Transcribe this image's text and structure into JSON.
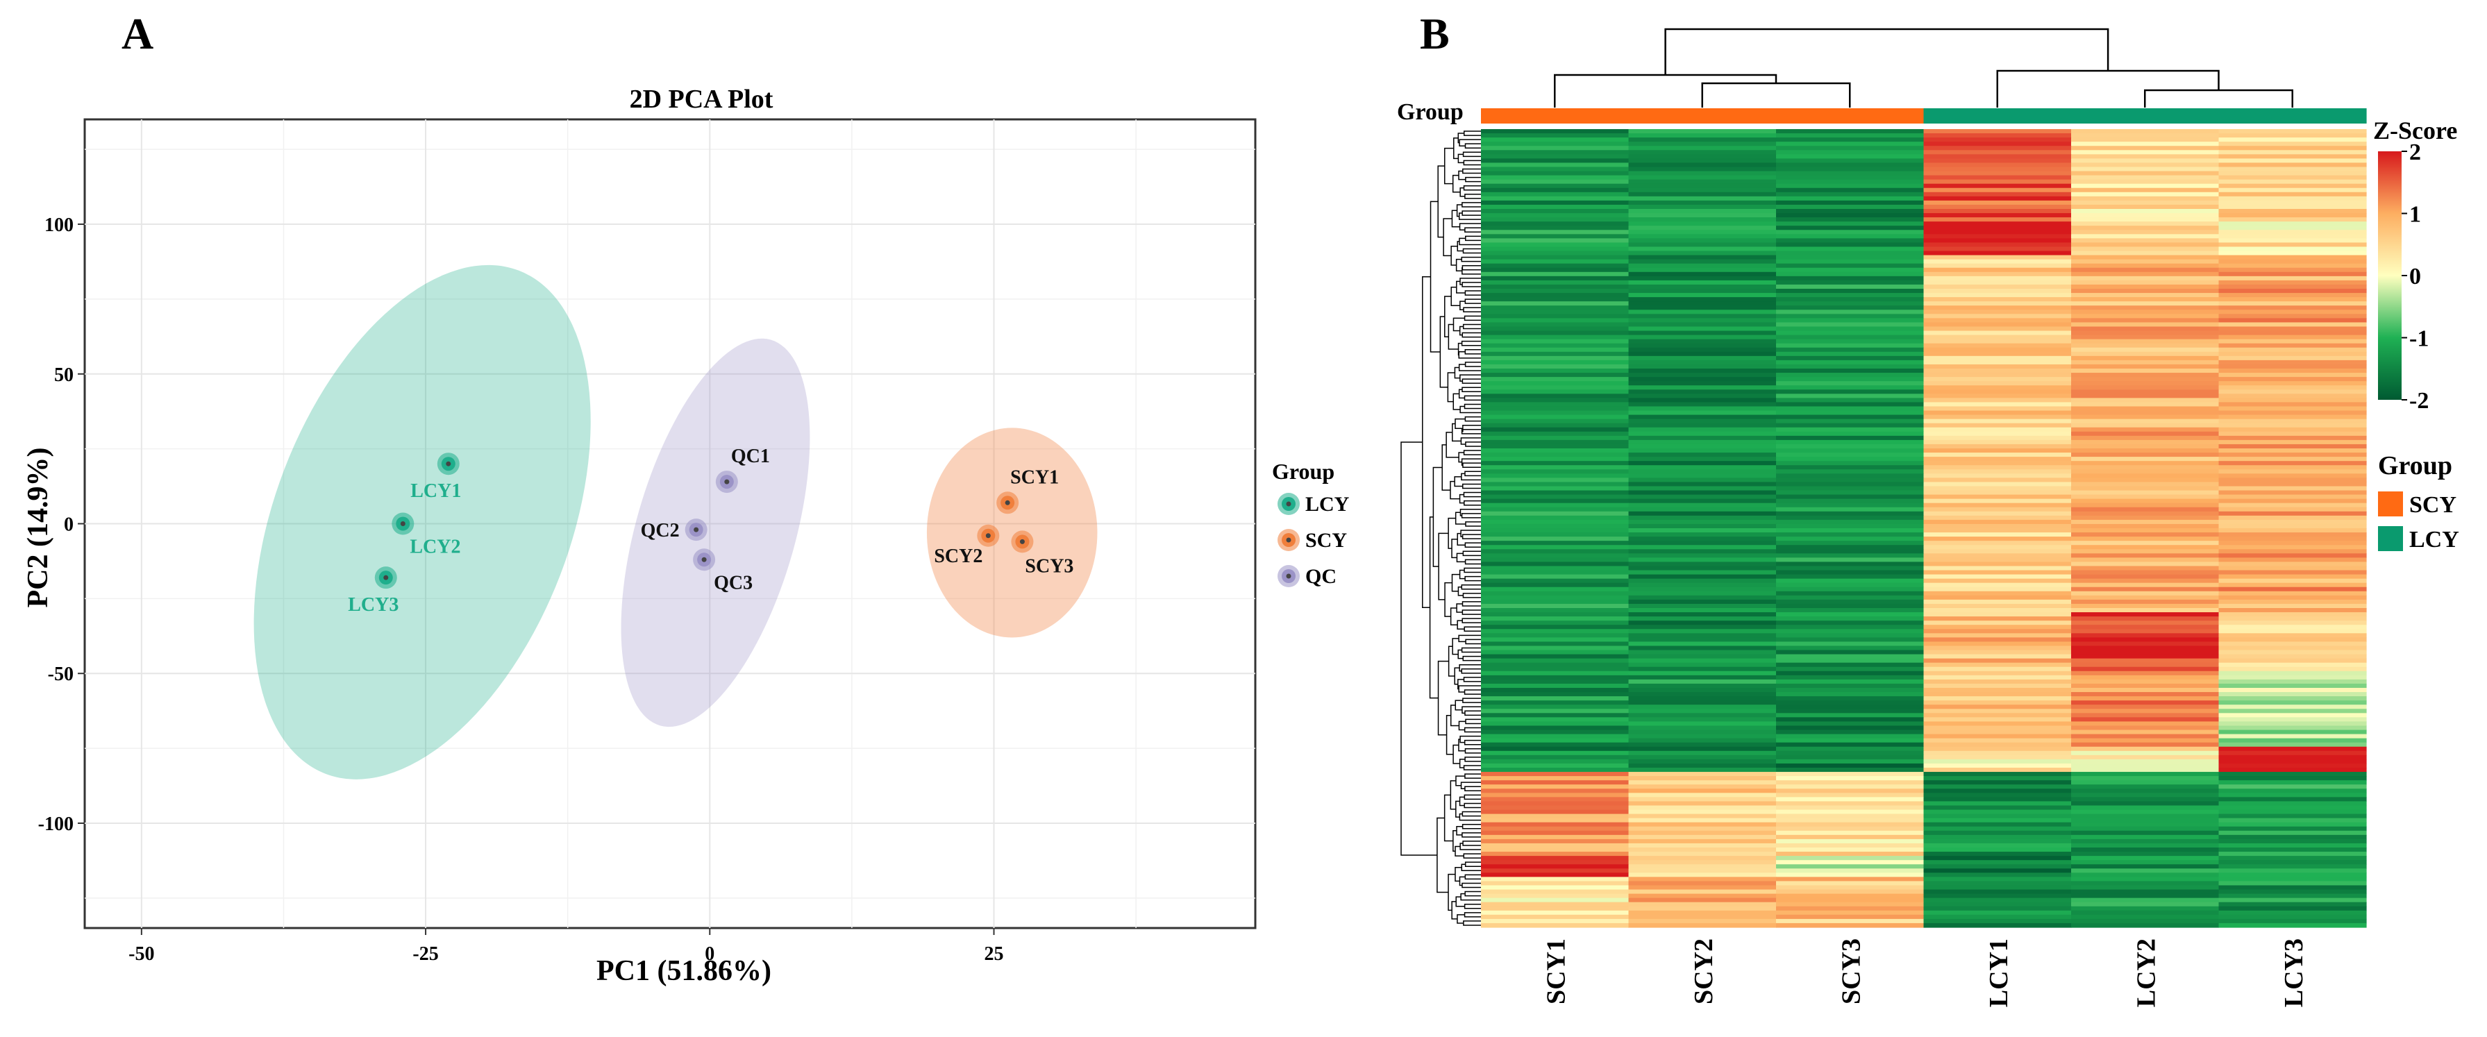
{
  "colors": {
    "LCY": "#1fae8c",
    "SCY": "#f07f3c",
    "QC": "#9b93c7",
    "bar_SCY": "#ff6a13",
    "bar_LCY": "#0a9a6e",
    "grid": "#e6e6e6",
    "frame": "#333333"
  },
  "panels": {
    "a": "A",
    "b": "B"
  },
  "chart_data": [
    {
      "type": "scatter",
      "title": "2D PCA Plot",
      "xlabel": "PC1 (51.86%)",
      "ylabel": "PC2 (14.9%)",
      "xlim": [
        -55,
        48
      ],
      "ylim": [
        -135,
        135
      ],
      "xticks": [
        -50,
        -25,
        0,
        25
      ],
      "xtick_labels": [
        "-50",
        "-25",
        "0",
        "25"
      ],
      "yticks": [
        100,
        50,
        0,
        -50,
        -100
      ],
      "ytick_labels": [
        "100",
        "50",
        "0",
        "-50",
        "-100"
      ],
      "legend": {
        "title": "Group",
        "items": [
          "LCY",
          "SCY",
          "QC"
        ],
        "position": "right"
      },
      "points": [
        {
          "label": "LCY1",
          "group": "LCY",
          "x": -23,
          "y": 20
        },
        {
          "label": "LCY2",
          "group": "LCY",
          "x": -27,
          "y": 0
        },
        {
          "label": "LCY3",
          "group": "LCY",
          "x": -28.5,
          "y": -18
        },
        {
          "label": "QC1",
          "group": "QC",
          "x": 1.5,
          "y": 14
        },
        {
          "label": "QC2",
          "group": "QC",
          "x": -1.2,
          "y": -2
        },
        {
          "label": "QC3",
          "group": "QC",
          "x": -0.5,
          "y": -12
        },
        {
          "label": "SCY1",
          "group": "SCY",
          "x": 26.2,
          "y": 7
        },
        {
          "label": "SCY2",
          "group": "SCY",
          "x": 24.5,
          "y": -4
        },
        {
          "label": "SCY3",
          "group": "SCY",
          "x": 27.5,
          "y": -6
        }
      ],
      "ellipses": [
        {
          "group": "LCY",
          "cx": -25.3,
          "cy": 0.5,
          "rx": 13,
          "ry": 90,
          "angle_deg": 21
        },
        {
          "group": "QC",
          "cx": 0.5,
          "cy": -3,
          "rx": 7,
          "ry": 67,
          "angle_deg": 16
        },
        {
          "group": "SCY",
          "cx": 26.6,
          "cy": -3,
          "rx": 7.5,
          "ry": 35,
          "angle_deg": 0
        }
      ]
    },
    {
      "type": "heatmap",
      "columns": [
        "SCY1",
        "SCY2",
        "SCY3",
        "LCY1",
        "LCY2",
        "LCY3"
      ],
      "column_groups": [
        "SCY",
        "SCY",
        "SCY",
        "LCY",
        "LCY",
        "LCY"
      ],
      "group_label": "Group",
      "colorbar": {
        "title": "Z-Score",
        "min": -2,
        "max": 2,
        "ticks": [
          2,
          1,
          0,
          -1,
          -2
        ],
        "tick_labels": [
          "2",
          "1",
          "0",
          "-1",
          "-2"
        ]
      },
      "legend": {
        "title": "Group",
        "items": [
          "SCY",
          "LCY"
        ]
      },
      "column_dendrogram": "((SCY1,(SCY2,SCY3)),(LCY1,(LCY2,LCY3)))",
      "row_blocks": [
        {
          "rows": 22,
          "z": [
            -1.3,
            -1.3,
            -1.4,
            1.6,
            0.4,
            0.5
          ]
        },
        {
          "rows": 8,
          "z": [
            -1.2,
            -1.3,
            -1.4,
            2.0,
            0.4,
            0.3
          ]
        },
        {
          "rows": 85,
          "z": [
            -1.3,
            -1.4,
            -1.3,
            0.6,
            0.9,
            1.0
          ]
        },
        {
          "rows": 14,
          "z": [
            -1.3,
            -1.4,
            -1.3,
            0.8,
            1.8,
            0.4
          ]
        },
        {
          "rows": 18,
          "z": [
            -1.3,
            -1.3,
            -1.4,
            0.7,
            1.2,
            -0.3
          ]
        },
        {
          "rows": 6,
          "z": [
            -1.4,
            -1.4,
            -1.5,
            0.3,
            0.3,
            2.0
          ]
        },
        {
          "rows": 20,
          "z": [
            1.1,
            0.6,
            0.4,
            -1.4,
            -1.3,
            -1.2
          ]
        },
        {
          "rows": 5,
          "z": [
            1.9,
            0.2,
            -0.1,
            -1.5,
            -1.3,
            -1.3
          ]
        },
        {
          "rows": 12,
          "z": [
            0.3,
            0.9,
            0.7,
            -1.4,
            -1.3,
            -1.3
          ]
        }
      ]
    }
  ]
}
